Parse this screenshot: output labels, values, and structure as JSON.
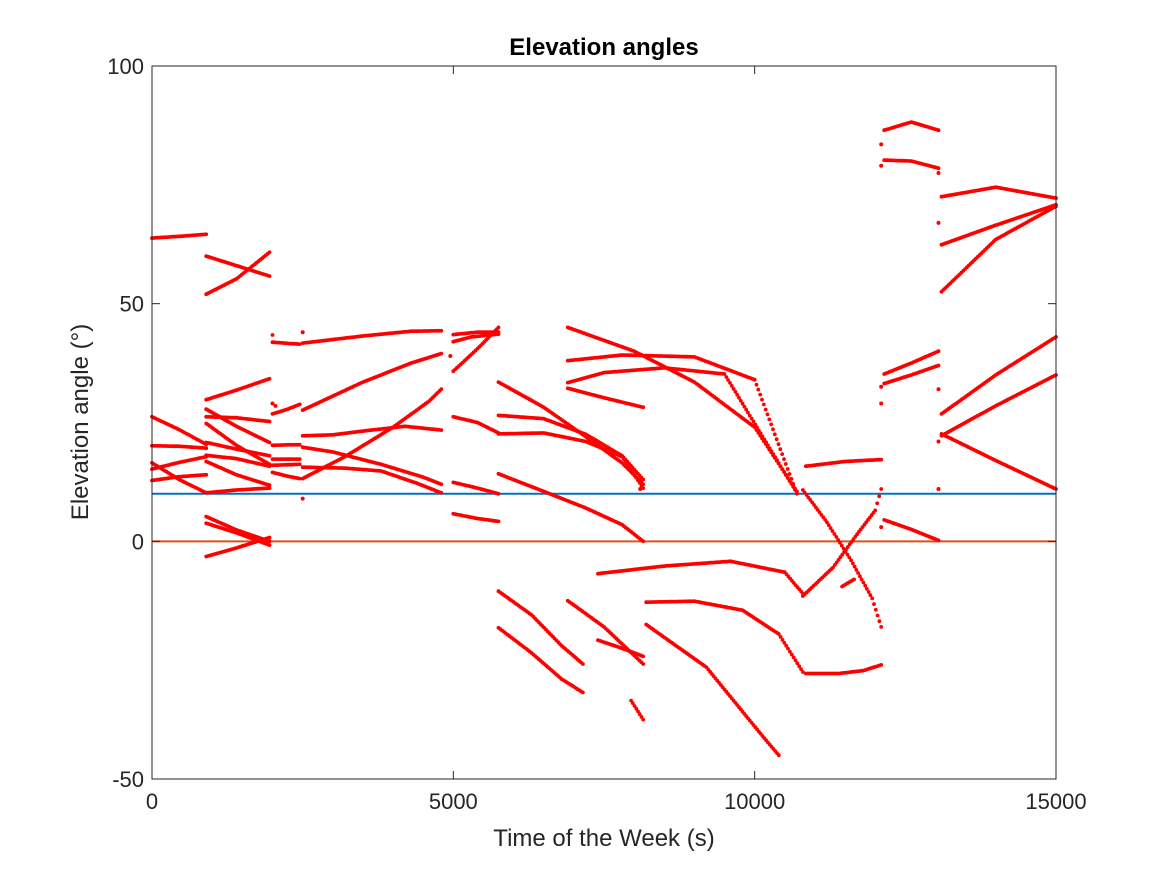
{
  "chart_data": {
    "type": "scatter",
    "title": "Elevation angles",
    "xlabel": "Time of the Week (s)",
    "ylabel": "Elevation angle (°)",
    "xlim": [
      0,
      15000
    ],
    "ylim": [
      -50,
      100
    ],
    "x_ticks": [
      0,
      5000,
      10000,
      15000
    ],
    "y_ticks": [
      -50,
      0,
      50,
      100
    ],
    "x_tick_labels": [
      "0",
      "5000",
      "10000",
      "15000"
    ],
    "y_tick_labels": [
      "-50",
      "0",
      "50",
      "100"
    ],
    "grid": false,
    "box": true,
    "colors": {
      "points": "#ff0000",
      "mask_line": "#0072bd",
      "horizon_line": "#d95319"
    },
    "reference_lines": [
      {
        "y": 10,
        "color": "#0072bd"
      },
      {
        "y": 0,
        "color": "#d95319"
      }
    ],
    "point_step_s": 30,
    "series": [
      {
        "points": [
          [
            0,
            63.8
          ],
          [
            500,
            64.2
          ],
          [
            900,
            64.6
          ]
        ]
      },
      {
        "points": [
          [
            0,
            26.2
          ],
          [
            450,
            23.5
          ],
          [
            900,
            20.4
          ]
        ]
      },
      {
        "points": [
          [
            0,
            20.1
          ],
          [
            450,
            20
          ],
          [
            900,
            19.6
          ]
        ]
      },
      {
        "points": [
          [
            0,
            16.5
          ],
          [
            450,
            13
          ],
          [
            900,
            10.2
          ]
        ]
      },
      {
        "points": [
          [
            0,
            15.2
          ],
          [
            450,
            16.6
          ],
          [
            900,
            17.8
          ]
        ]
      },
      {
        "points": [
          [
            0,
            12.8
          ],
          [
            450,
            13.6
          ],
          [
            900,
            14
          ]
        ]
      },
      {
        "points": [
          [
            900,
            52
          ],
          [
            1400,
            55.2
          ],
          [
            1950,
            60.8
          ]
        ]
      },
      {
        "points": [
          [
            900,
            60
          ],
          [
            1400,
            58
          ],
          [
            1950,
            55.8
          ]
        ]
      },
      {
        "points": [
          [
            900,
            29.8
          ],
          [
            1400,
            31.8
          ],
          [
            1950,
            34.2
          ]
        ]
      },
      {
        "points": [
          [
            900,
            27.8
          ],
          [
            1400,
            24.2
          ],
          [
            1950,
            20.8
          ]
        ]
      },
      {
        "points": [
          [
            900,
            26.2
          ],
          [
            1400,
            26
          ],
          [
            1950,
            25.2
          ]
        ]
      },
      {
        "points": [
          [
            900,
            24.8
          ],
          [
            1400,
            20.2
          ],
          [
            1950,
            16.2
          ]
        ]
      },
      {
        "points": [
          [
            900,
            20.8
          ],
          [
            1400,
            19.4
          ],
          [
            1950,
            18
          ]
        ]
      },
      {
        "points": [
          [
            900,
            18.1
          ],
          [
            1400,
            17.4
          ],
          [
            1950,
            15.8
          ]
        ]
      },
      {
        "points": [
          [
            900,
            16.8
          ],
          [
            1400,
            14
          ],
          [
            1950,
            11.8
          ]
        ]
      },
      {
        "points": [
          [
            900,
            10.2
          ],
          [
            1400,
            10.8
          ],
          [
            1950,
            11.2
          ]
        ]
      },
      {
        "points": [
          [
            900,
            3.8
          ],
          [
            1400,
            1.8
          ],
          [
            1950,
            -0.8
          ]
        ]
      },
      {
        "points": [
          [
            900,
            5.2
          ],
          [
            1400,
            2.4
          ],
          [
            1950,
            0
          ]
        ]
      },
      {
        "points": [
          [
            900,
            -3.2
          ],
          [
            1400,
            -1.4
          ],
          [
            1950,
            0.8
          ]
        ]
      },
      {
        "points": [
          [
            2000,
            43.4
          ],
          [
            2000,
            41.9
          ],
          [
            2300,
            41.6
          ],
          [
            2450,
            41.5
          ]
        ]
      },
      {
        "points": [
          [
            2000,
            26.8
          ],
          [
            2250,
            27.8
          ],
          [
            2450,
            28.8
          ]
        ]
      },
      {
        "points": [
          [
            2000,
            20.2
          ],
          [
            2250,
            20.3
          ],
          [
            2450,
            20.3
          ]
        ]
      },
      {
        "points": [
          [
            2000,
            17.3
          ],
          [
            2250,
            17.3
          ],
          [
            2450,
            17.3
          ]
        ]
      },
      {
        "points": [
          [
            2000,
            16.0
          ],
          [
            2250,
            16.1
          ],
          [
            2450,
            16.2
          ]
        ]
      },
      {
        "points": [
          [
            2000,
            14.5
          ],
          [
            2250,
            13.7
          ],
          [
            2450,
            13.2
          ]
        ]
      },
      {
        "points": [
          [
            2500,
            41.7
          ],
          [
            3500,
            43.2
          ],
          [
            4300,
            44.2
          ],
          [
            4800,
            44.3
          ]
        ]
      },
      {
        "points": [
          [
            2500,
            27.6
          ],
          [
            3500,
            33.5
          ],
          [
            4300,
            37.5
          ],
          [
            4800,
            39.5
          ]
        ]
      },
      {
        "points": [
          [
            2500,
            22.2
          ],
          [
            3000,
            22.4
          ],
          [
            3500,
            23.2
          ],
          [
            4200,
            24.2
          ],
          [
            4800,
            23.4
          ]
        ]
      },
      {
        "points": [
          [
            2500,
            19.8
          ],
          [
            3000,
            18.8
          ],
          [
            3800,
            16.2
          ],
          [
            4500,
            13.5
          ],
          [
            4800,
            12
          ]
        ]
      },
      {
        "points": [
          [
            2500,
            13.2
          ],
          [
            3200,
            17.8
          ],
          [
            4000,
            24
          ],
          [
            4600,
            29.5
          ],
          [
            4800,
            32
          ]
        ]
      },
      {
        "points": [
          [
            2500,
            15.6
          ],
          [
            3200,
            15.4
          ],
          [
            3800,
            14.8
          ],
          [
            4400,
            12.2
          ],
          [
            4800,
            10.2
          ]
        ]
      },
      {
        "points": [
          [
            5000,
            43.5
          ],
          [
            5400,
            44
          ],
          [
            5750,
            44
          ]
        ]
      },
      {
        "points": [
          [
            5000,
            42
          ],
          [
            5300,
            43
          ],
          [
            5750,
            43.6
          ]
        ]
      },
      {
        "points": [
          [
            5000,
            35.8
          ],
          [
            5400,
            40.5
          ],
          [
            5750,
            45
          ]
        ]
      },
      {
        "points": [
          [
            5000,
            26.2
          ],
          [
            5400,
            25
          ],
          [
            5750,
            22.8
          ]
        ]
      },
      {
        "points": [
          [
            5000,
            12.4
          ],
          [
            5400,
            11.2
          ],
          [
            5750,
            10
          ]
        ]
      },
      {
        "points": [
          [
            5000,
            5.8
          ],
          [
            5400,
            4.8
          ],
          [
            5750,
            4.2
          ]
        ]
      },
      {
        "points": [
          [
            5750,
            33.5
          ],
          [
            6500,
            28.2
          ],
          [
            7200,
            22
          ],
          [
            7800,
            16.5
          ],
          [
            8150,
            12
          ]
        ]
      },
      {
        "points": [
          [
            5750,
            26.5
          ],
          [
            6500,
            25.8
          ],
          [
            7200,
            22.5
          ],
          [
            7800,
            18
          ],
          [
            8150,
            13
          ]
        ]
      },
      {
        "points": [
          [
            5750,
            22.6
          ],
          [
            6500,
            22.8
          ],
          [
            7200,
            21
          ],
          [
            7800,
            17.8
          ],
          [
            8150,
            11.2
          ]
        ]
      },
      {
        "points": [
          [
            5750,
            14.2
          ],
          [
            6500,
            10.5
          ],
          [
            7200,
            7
          ],
          [
            7800,
            3.5
          ],
          [
            8150,
            0
          ]
        ]
      },
      {
        "points": [
          [
            5750,
            -10.5
          ],
          [
            6300,
            -15.5
          ],
          [
            6800,
            -22
          ],
          [
            7150,
            -25.8
          ]
        ]
      },
      {
        "points": [
          [
            5750,
            -18.2
          ],
          [
            6300,
            -23.5
          ],
          [
            6800,
            -29
          ],
          [
            7150,
            -31.8
          ]
        ]
      },
      {
        "points": [
          [
            6900,
            45
          ],
          [
            8000,
            40
          ],
          [
            9000,
            33.5
          ],
          [
            10000,
            24
          ],
          [
            10700,
            10.5
          ]
        ]
      },
      {
        "points": [
          [
            6900,
            38
          ],
          [
            7800,
            39.2
          ],
          [
            9000,
            38.8
          ],
          [
            10000,
            34
          ],
          [
            10700,
            10
          ]
        ]
      },
      {
        "points": [
          [
            6900,
            33.4
          ],
          [
            7500,
            35.5
          ],
          [
            8500,
            36.5
          ],
          [
            9500,
            35.2
          ],
          [
            10700,
            10.2
          ]
        ]
      },
      {
        "points": [
          [
            6900,
            32.2
          ],
          [
            7500,
            30.2
          ],
          [
            8150,
            28.2
          ]
        ]
      },
      {
        "points": [
          [
            6900,
            -12.5
          ],
          [
            7500,
            -18
          ],
          [
            8150,
            -25.8
          ]
        ]
      },
      {
        "points": [
          [
            7400,
            -20.8
          ],
          [
            7800,
            -22.5
          ],
          [
            8150,
            -24.2
          ]
        ]
      },
      {
        "points": [
          [
            7400,
            -6.8
          ],
          [
            8500,
            -5.2
          ],
          [
            9600,
            -4.2
          ],
          [
            10500,
            -6.5
          ],
          [
            10800,
            -11
          ]
        ]
      },
      {
        "points": [
          [
            7950,
            -33.5
          ],
          [
            8150,
            -37.5
          ]
        ]
      },
      {
        "points": [
          [
            8200,
            -12.8
          ],
          [
            9000,
            -12.6
          ],
          [
            9800,
            -14.5
          ],
          [
            10400,
            -19.5
          ],
          [
            10800,
            -27.5
          ]
        ]
      },
      {
        "points": [
          [
            8200,
            -17.5
          ],
          [
            9200,
            -26.5
          ],
          [
            10100,
            -40.5
          ],
          [
            10400,
            -45
          ]
        ]
      },
      {
        "points": [
          [
            10850,
            15.8
          ],
          [
            11500,
            16.8
          ],
          [
            12100,
            17.2
          ]
        ]
      },
      {
        "points": [
          [
            10800,
            10.8
          ],
          [
            11200,
            4
          ],
          [
            11600,
            -4
          ],
          [
            11950,
            -12
          ],
          [
            12100,
            -18
          ]
        ]
      },
      {
        "points": [
          [
            10800,
            -11.5
          ],
          [
            11300,
            -5.5
          ],
          [
            11700,
            1.5
          ],
          [
            12000,
            6.5
          ],
          [
            12100,
            11
          ]
        ]
      },
      {
        "points": [
          [
            10850,
            -27.8
          ],
          [
            11400,
            -27.8
          ],
          [
            11800,
            -27.2
          ],
          [
            12100,
            -26
          ]
        ]
      },
      {
        "points": [
          [
            11450,
            -9.5
          ],
          [
            11650,
            -8
          ]
        ]
      },
      {
        "points": [
          [
            12150,
            86.5
          ],
          [
            12600,
            88.2
          ],
          [
            13050,
            86.5
          ]
        ]
      },
      {
        "points": [
          [
            12150,
            80.2
          ],
          [
            12600,
            80
          ],
          [
            13050,
            78.5
          ]
        ]
      },
      {
        "points": [
          [
            12150,
            35.2
          ],
          [
            12600,
            37.5
          ],
          [
            13050,
            40
          ]
        ]
      },
      {
        "points": [
          [
            12150,
            33.2
          ],
          [
            12600,
            35
          ],
          [
            13050,
            37
          ]
        ]
      },
      {
        "points": [
          [
            12150,
            4.5
          ],
          [
            12600,
            2.5
          ],
          [
            13050,
            0.2
          ]
        ]
      },
      {
        "points": [
          [
            13100,
            72.5
          ],
          [
            14000,
            74.5
          ],
          [
            15000,
            72.2
          ]
        ]
      },
      {
        "points": [
          [
            13100,
            62.4
          ],
          [
            14000,
            66.5
          ],
          [
            15000,
            70.8
          ]
        ]
      },
      {
        "points": [
          [
            13100,
            52.5
          ],
          [
            14000,
            63.5
          ],
          [
            15000,
            70.5
          ]
        ]
      },
      {
        "points": [
          [
            13100,
            26.8
          ],
          [
            14000,
            35
          ],
          [
            15000,
            43
          ]
        ]
      },
      {
        "points": [
          [
            13100,
            22.2
          ],
          [
            14000,
            28.5
          ],
          [
            15000,
            35
          ]
        ]
      },
      {
        "points": [
          [
            13100,
            22.6
          ],
          [
            14000,
            17
          ],
          [
            15000,
            11
          ]
        ]
      }
    ],
    "isolated_points": [
      [
        2000,
        29
      ],
      [
        2050,
        28.5
      ],
      [
        2500,
        44
      ],
      [
        2500,
        9
      ],
      [
        4950,
        39
      ],
      [
        8100,
        11
      ],
      [
        12100,
        83.5
      ],
      [
        12100,
        79
      ],
      [
        12100,
        29
      ],
      [
        12100,
        32.5
      ],
      [
        12100,
        3
      ],
      [
        13050,
        67
      ],
      [
        13050,
        77.5
      ],
      [
        13050,
        32
      ],
      [
        13050,
        11
      ],
      [
        13050,
        21
      ]
    ]
  }
}
